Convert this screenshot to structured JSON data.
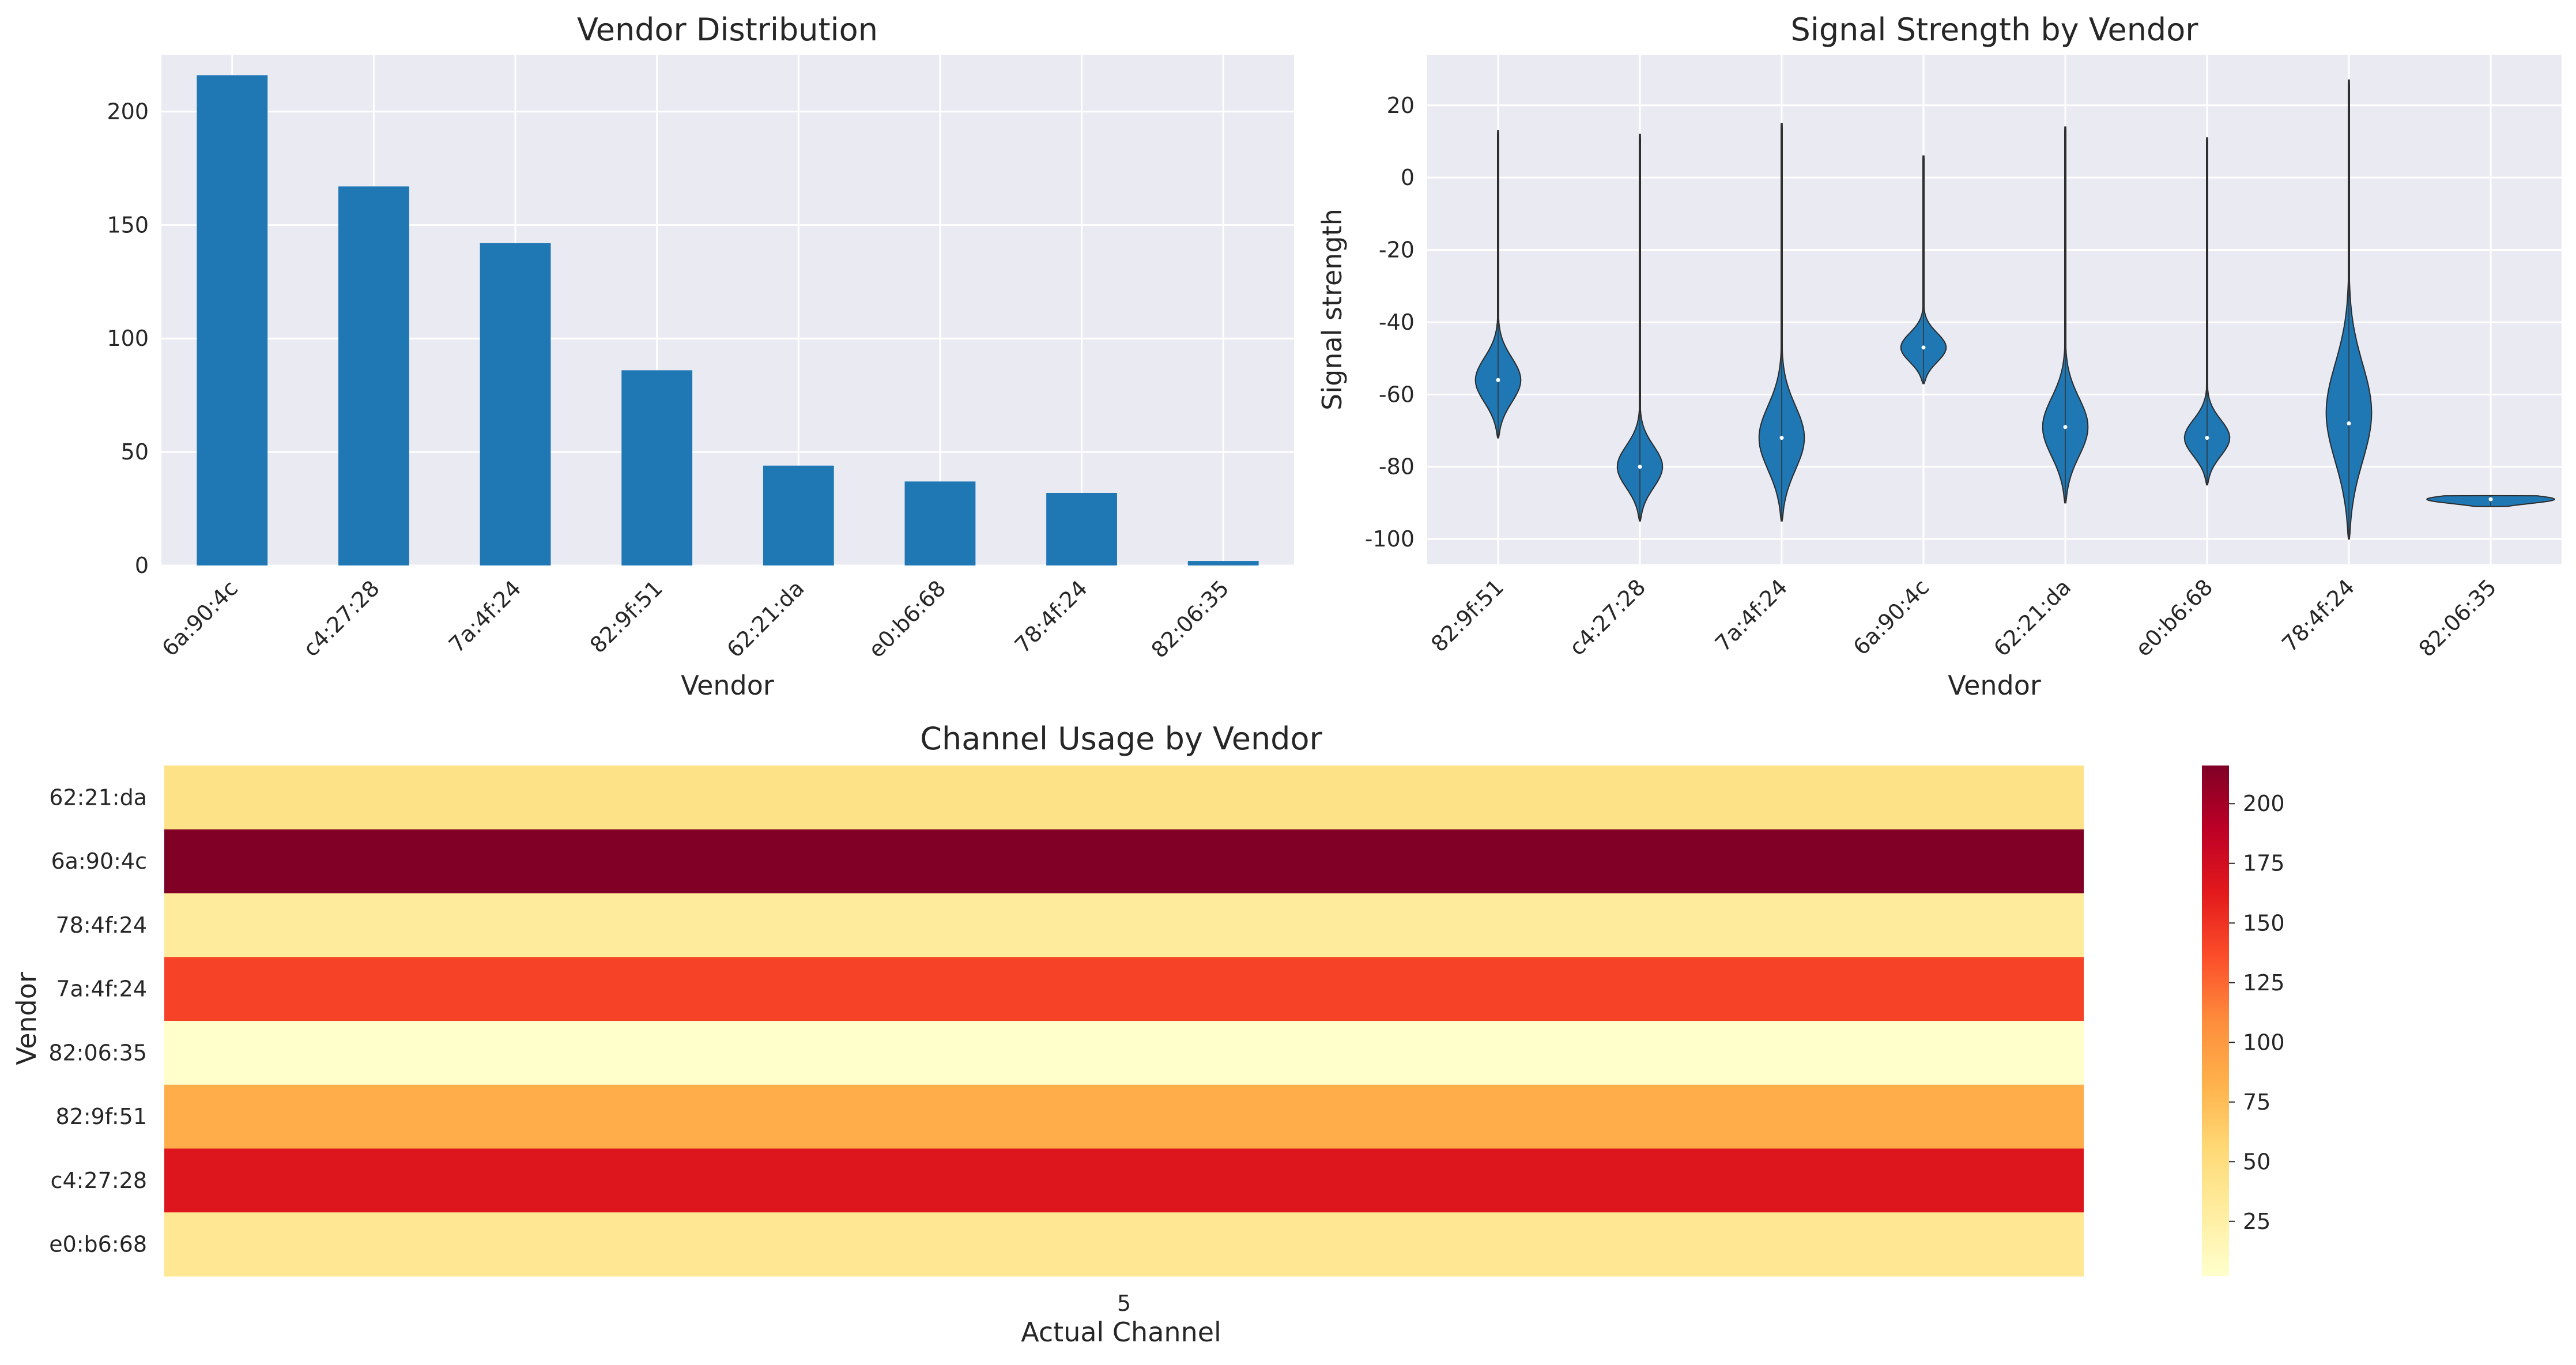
{
  "chart_data": [
    {
      "type": "bar",
      "title": "Vendor Distribution",
      "xlabel": "Vendor",
      "ylabel": "",
      "categories": [
        "6a:90:4c",
        "c4:27:28",
        "7a:4f:24",
        "82:9f:51",
        "62:21:da",
        "e0:b6:68",
        "78:4f:24",
        "82:06:35"
      ],
      "values": [
        216,
        167,
        142,
        86,
        44,
        37,
        32,
        2
      ],
      "ylim": [
        0,
        225
      ],
      "yticks": [
        0,
        50,
        100,
        150,
        200
      ],
      "grid": true,
      "color": "#1f77b4",
      "background": "#eaeaf2"
    },
    {
      "type": "violin",
      "title": "Signal Strength by Vendor",
      "xlabel": "Vendor",
      "ylabel": "Signal strength",
      "categories": [
        "82:9f:51",
        "c4:27:28",
        "7a:4f:24",
        "6a:90:4c",
        "62:21:da",
        "e0:b6:68",
        "78:4f:24",
        "82:06:35"
      ],
      "distributions": [
        {
          "min": -72,
          "max": 13,
          "median": -56,
          "mode": -56
        },
        {
          "min": -95,
          "max": 12,
          "median": -80,
          "mode": -80
        },
        {
          "min": -95,
          "max": 15,
          "median": -72,
          "mode": -72
        },
        {
          "min": -57,
          "max": 6,
          "median": -47,
          "mode": -47
        },
        {
          "min": -90,
          "max": 14,
          "median": -69,
          "mode": -69
        },
        {
          "min": -85,
          "max": 11,
          "median": -72,
          "mode": -72
        },
        {
          "min": -100,
          "max": 27,
          "median": -68,
          "mode": -65
        },
        {
          "min": -91,
          "max": -88,
          "median": -89,
          "mode": -89
        }
      ],
      "ylim": [
        -107,
        34
      ],
      "yticks": [
        -100,
        -80,
        -60,
        -40,
        -20,
        0,
        20
      ],
      "grid": true,
      "color": "#1f77b4",
      "background": "#eaeaf2"
    },
    {
      "type": "heatmap",
      "title": "Channel Usage by Vendor",
      "xlabel": "Actual Channel",
      "ylabel": "Vendor",
      "columns": [
        "5"
      ],
      "rows": [
        "62:21:da",
        "6a:90:4c",
        "78:4f:24",
        "7a:4f:24",
        "82:06:35",
        "82:9f:51",
        "c4:27:28",
        "e0:b6:68"
      ],
      "values": [
        [
          44
        ],
        [
          216
        ],
        [
          32
        ],
        [
          142
        ],
        [
          2
        ],
        [
          86
        ],
        [
          167
        ],
        [
          37
        ]
      ],
      "colormap": "YlOrRd",
      "colorbar_ticks": [
        25,
        50,
        75,
        100,
        125,
        150,
        175,
        200
      ],
      "vmin": 2,
      "vmax": 216
    }
  ]
}
